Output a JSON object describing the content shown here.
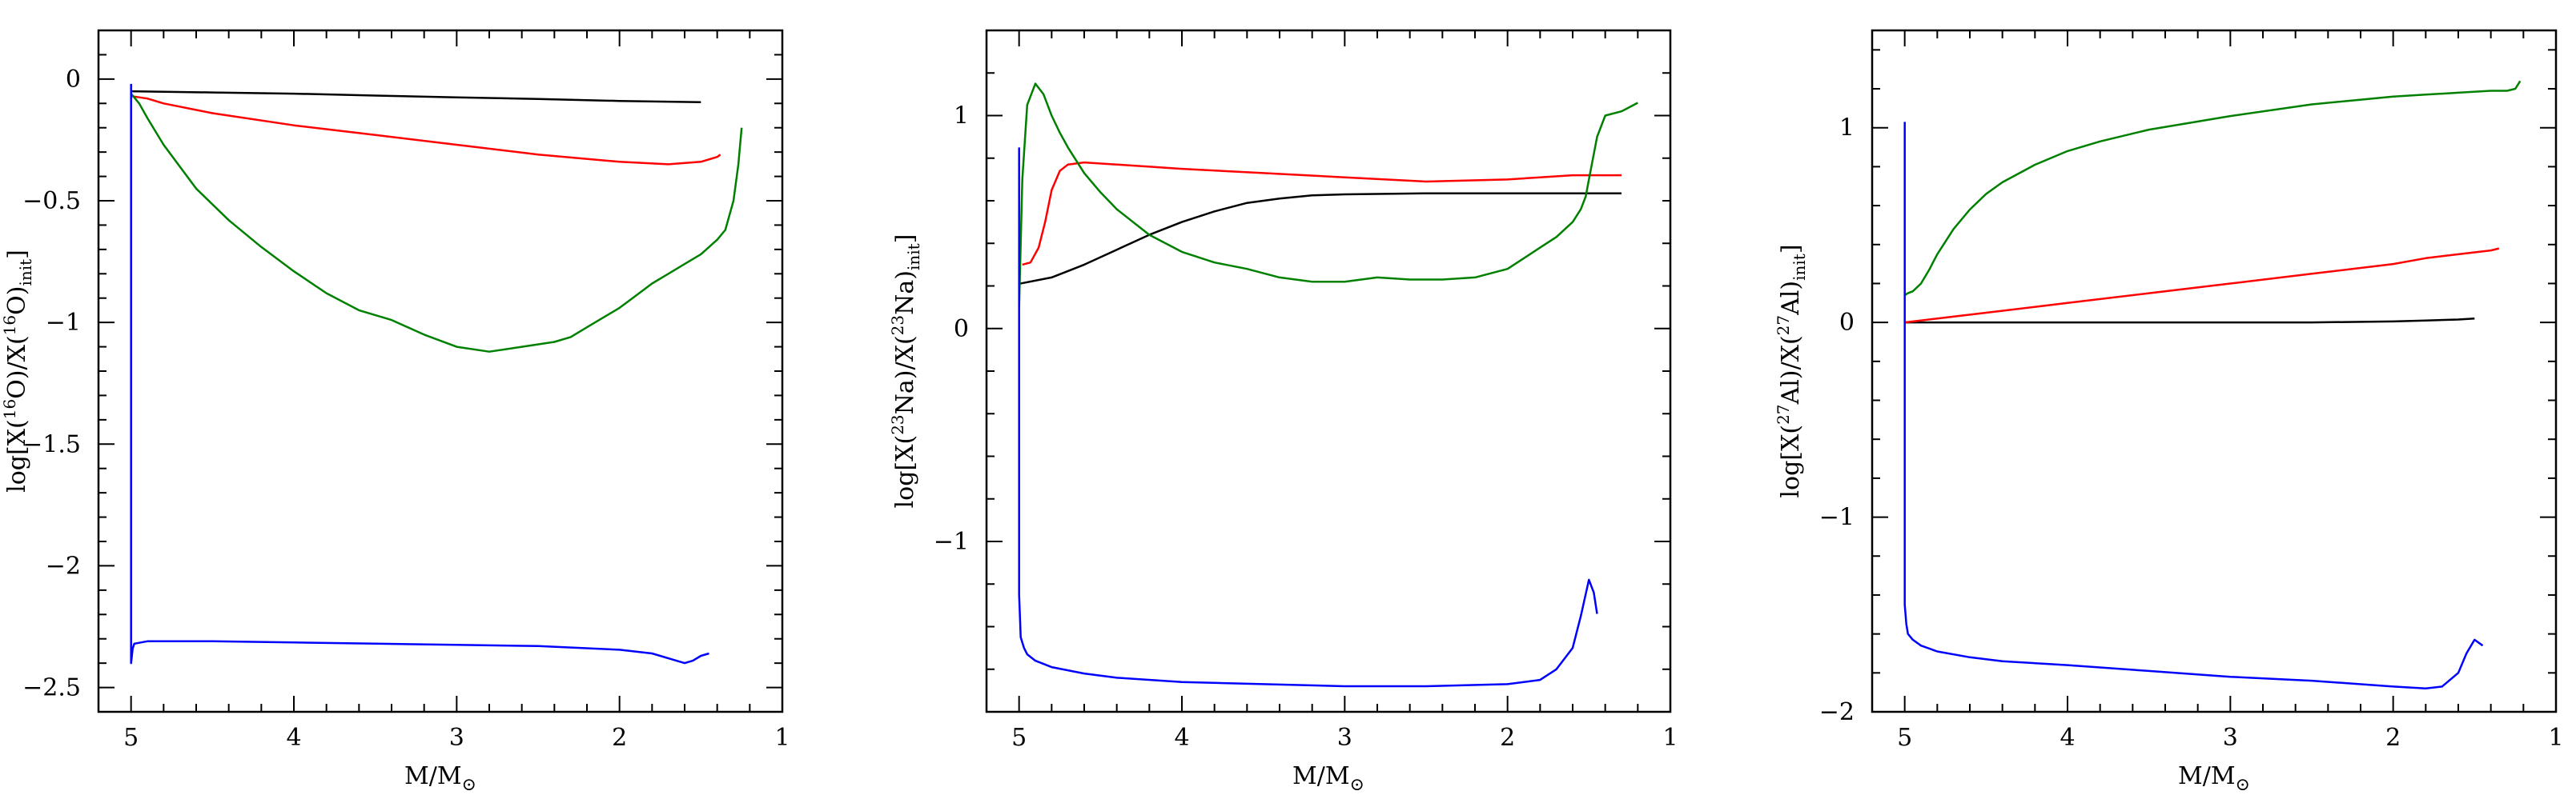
{
  "chart_data": [
    {
      "type": "line",
      "id": "oxygen",
      "xlabel": "M/M⊙",
      "ylabel": {
        "prefix": "log[X(",
        "sup": "16",
        "element": "O",
        "middle": ")/X(",
        "sup2": "16",
        "element2": "O",
        "suffix": ")",
        "sub": "init",
        "close": "]"
      },
      "xlim": [
        5.2,
        1.0
      ],
      "ylim": [
        -2.6,
        0.2
      ],
      "xticks": [
        5,
        4,
        3,
        2,
        1
      ],
      "xtick_labels": [
        "5",
        "4",
        "3",
        "2",
        "1"
      ],
      "yticks": [
        0,
        -0.5,
        -1,
        -1.5,
        -2,
        -2.5
      ],
      "ytick_labels": [
        "0",
        "−0.5",
        "−1",
        "−1.5",
        "−2",
        "−2.5"
      ],
      "series": [
        {
          "name": "black",
          "color": "#000000",
          "x": [
            5.0,
            4.5,
            4.0,
            3.5,
            3.0,
            2.5,
            2.0,
            1.5
          ],
          "y": [
            -0.05,
            -0.055,
            -0.06,
            -0.068,
            -0.075,
            -0.082,
            -0.09,
            -0.095
          ]
        },
        {
          "name": "red",
          "color": "#ff0000",
          "x": [
            5.0,
            4.9,
            4.8,
            4.5,
            4.0,
            3.5,
            3.0,
            2.5,
            2.0,
            1.7,
            1.5,
            1.4,
            1.38
          ],
          "y": [
            -0.07,
            -0.08,
            -0.1,
            -0.14,
            -0.19,
            -0.23,
            -0.27,
            -0.31,
            -0.34,
            -0.35,
            -0.34,
            -0.32,
            -0.31
          ]
        },
        {
          "name": "green",
          "color": "#008000",
          "x": [
            5.0,
            4.95,
            4.9,
            4.8,
            4.6,
            4.4,
            4.2,
            4.0,
            3.8,
            3.6,
            3.4,
            3.2,
            3.0,
            2.8,
            2.6,
            2.4,
            2.3,
            2.2,
            2.1,
            2.0,
            1.9,
            1.8,
            1.7,
            1.6,
            1.5,
            1.4,
            1.35,
            1.3,
            1.27,
            1.25
          ],
          "y": [
            -0.06,
            -0.1,
            -0.16,
            -0.27,
            -0.45,
            -0.58,
            -0.69,
            -0.79,
            -0.88,
            -0.95,
            -0.99,
            -1.05,
            -1.1,
            -1.12,
            -1.1,
            -1.08,
            -1.06,
            -1.02,
            -0.98,
            -0.94,
            -0.89,
            -0.84,
            -0.8,
            -0.76,
            -0.72,
            -0.66,
            -0.62,
            -0.5,
            -0.35,
            -0.2
          ]
        },
        {
          "name": "blue",
          "color": "#0000ff",
          "x": [
            5.0,
            5.0,
            4.99,
            4.98,
            4.9,
            4.5,
            4.0,
            3.5,
            3.0,
            2.5,
            2.0,
            1.8,
            1.65,
            1.6,
            1.55,
            1.5,
            1.45
          ],
          "y": [
            -0.02,
            -2.4,
            -2.34,
            -2.32,
            -2.31,
            -2.31,
            -2.315,
            -2.32,
            -2.325,
            -2.33,
            -2.345,
            -2.36,
            -2.39,
            -2.4,
            -2.39,
            -2.37,
            -2.36
          ]
        }
      ]
    },
    {
      "type": "line",
      "id": "sodium",
      "xlabel": "M/M⊙",
      "ylabel": {
        "prefix": "log[X(",
        "sup": "23",
        "element": "Na",
        "middle": ")/X(",
        "sup2": "23",
        "element2": "Na",
        "suffix": ")",
        "sub": "init",
        "close": "]"
      },
      "xlim": [
        5.2,
        1.0
      ],
      "ylim": [
        -1.8,
        1.4
      ],
      "xticks": [
        5,
        4,
        3,
        2,
        1
      ],
      "xtick_labels": [
        "5",
        "4",
        "3",
        "2",
        "1"
      ],
      "yticks": [
        1,
        0,
        -1
      ],
      "ytick_labels": [
        "1",
        "0",
        "−1"
      ],
      "series": [
        {
          "name": "black",
          "color": "#000000",
          "x": [
            5.0,
            4.8,
            4.6,
            4.4,
            4.2,
            4.0,
            3.8,
            3.6,
            3.4,
            3.2,
            3.0,
            2.5,
            2.0,
            1.5,
            1.3
          ],
          "y": [
            0.21,
            0.24,
            0.3,
            0.37,
            0.44,
            0.5,
            0.55,
            0.59,
            0.61,
            0.625,
            0.63,
            0.635,
            0.635,
            0.635,
            0.635
          ]
        },
        {
          "name": "red",
          "color": "#ff0000",
          "x": [
            4.98,
            4.93,
            4.88,
            4.84,
            4.8,
            4.75,
            4.7,
            4.6,
            4.4,
            4.2,
            4.0,
            3.5,
            3.0,
            2.5,
            2.0,
            1.8,
            1.6,
            1.4,
            1.3
          ],
          "y": [
            0.3,
            0.31,
            0.38,
            0.5,
            0.65,
            0.74,
            0.77,
            0.78,
            0.77,
            0.76,
            0.75,
            0.73,
            0.71,
            0.69,
            0.7,
            0.71,
            0.72,
            0.72,
            0.72
          ]
        },
        {
          "name": "green",
          "color": "#008000",
          "x": [
            5.0,
            4.98,
            4.95,
            4.9,
            4.85,
            4.8,
            4.75,
            4.7,
            4.6,
            4.5,
            4.4,
            4.2,
            4.0,
            3.8,
            3.6,
            3.4,
            3.2,
            3.0,
            2.8,
            2.6,
            2.4,
            2.2,
            2.0,
            1.9,
            1.8,
            1.7,
            1.6,
            1.55,
            1.52,
            1.5,
            1.45,
            1.4,
            1.3,
            1.25,
            1.2
          ],
          "y": [
            0.1,
            0.7,
            1.05,
            1.15,
            1.1,
            1.0,
            0.92,
            0.85,
            0.73,
            0.64,
            0.56,
            0.44,
            0.36,
            0.31,
            0.28,
            0.24,
            0.22,
            0.22,
            0.24,
            0.23,
            0.23,
            0.24,
            0.28,
            0.33,
            0.38,
            0.43,
            0.5,
            0.56,
            0.62,
            0.7,
            0.9,
            1.0,
            1.02,
            1.04,
            1.06
          ]
        },
        {
          "name": "blue",
          "color": "#0000ff",
          "x": [
            5.0,
            5.0,
            4.99,
            4.97,
            4.95,
            4.9,
            4.8,
            4.6,
            4.4,
            4.0,
            3.5,
            3.0,
            2.5,
            2.0,
            1.8,
            1.7,
            1.6,
            1.55,
            1.5,
            1.47,
            1.45
          ],
          "y": [
            0.85,
            -1.25,
            -1.45,
            -1.5,
            -1.53,
            -1.56,
            -1.59,
            -1.62,
            -1.64,
            -1.66,
            -1.67,
            -1.68,
            -1.68,
            -1.67,
            -1.65,
            -1.6,
            -1.5,
            -1.35,
            -1.18,
            -1.24,
            -1.34
          ]
        }
      ]
    },
    {
      "type": "line",
      "id": "aluminium",
      "xlabel": "M/M⊙",
      "ylabel": {
        "prefix": "log[X(",
        "sup": "27",
        "element": "Al",
        "middle": ")/X(",
        "sup2": "27",
        "element2": "Al",
        "suffix": ")",
        "sub": "init",
        "close": "]"
      },
      "xlim": [
        5.2,
        1.0
      ],
      "ylim": [
        -2.0,
        1.5
      ],
      "xticks": [
        5,
        4,
        3,
        2,
        1
      ],
      "xtick_labels": [
        "5",
        "4",
        "3",
        "2",
        "1"
      ],
      "yticks": [
        1,
        0,
        -1,
        -2
      ],
      "ytick_labels": [
        "1",
        "0",
        "−1",
        "−2"
      ],
      "series": [
        {
          "name": "black",
          "color": "#000000",
          "x": [
            5.0,
            4.5,
            4.0,
            3.5,
            3.0,
            2.5,
            2.0,
            1.8,
            1.6,
            1.5
          ],
          "y": [
            0.0,
            0.0,
            0.0,
            0.0,
            0.0,
            0.0,
            0.005,
            0.01,
            0.015,
            0.02
          ]
        },
        {
          "name": "red",
          "color": "#ff0000",
          "x": [
            5.0,
            4.8,
            4.5,
            4.0,
            3.5,
            3.0,
            2.5,
            2.0,
            1.8,
            1.6,
            1.4,
            1.35
          ],
          "y": [
            0.0,
            0.02,
            0.05,
            0.1,
            0.15,
            0.2,
            0.25,
            0.3,
            0.33,
            0.35,
            0.37,
            0.38
          ]
        },
        {
          "name": "green",
          "color": "#008000",
          "x": [
            5.0,
            4.98,
            4.95,
            4.9,
            4.85,
            4.8,
            4.7,
            4.6,
            4.5,
            4.4,
            4.2,
            4.0,
            3.8,
            3.5,
            3.0,
            2.5,
            2.0,
            1.8,
            1.6,
            1.4,
            1.3,
            1.25,
            1.22
          ],
          "y": [
            0.14,
            0.15,
            0.16,
            0.2,
            0.27,
            0.35,
            0.48,
            0.58,
            0.66,
            0.72,
            0.81,
            0.88,
            0.93,
            0.99,
            1.06,
            1.12,
            1.16,
            1.17,
            1.18,
            1.19,
            1.19,
            1.2,
            1.24
          ]
        },
        {
          "name": "blue",
          "color": "#0000ff",
          "x": [
            5.0,
            5.0,
            4.99,
            4.98,
            4.95,
            4.9,
            4.8,
            4.6,
            4.4,
            4.0,
            3.5,
            3.0,
            2.5,
            2.0,
            1.8,
            1.7,
            1.6,
            1.55,
            1.5,
            1.45
          ],
          "y": [
            1.03,
            -1.45,
            -1.55,
            -1.6,
            -1.63,
            -1.66,
            -1.69,
            -1.72,
            -1.74,
            -1.76,
            -1.79,
            -1.82,
            -1.84,
            -1.87,
            -1.88,
            -1.87,
            -1.8,
            -1.7,
            -1.63,
            -1.66
          ]
        }
      ]
    }
  ]
}
